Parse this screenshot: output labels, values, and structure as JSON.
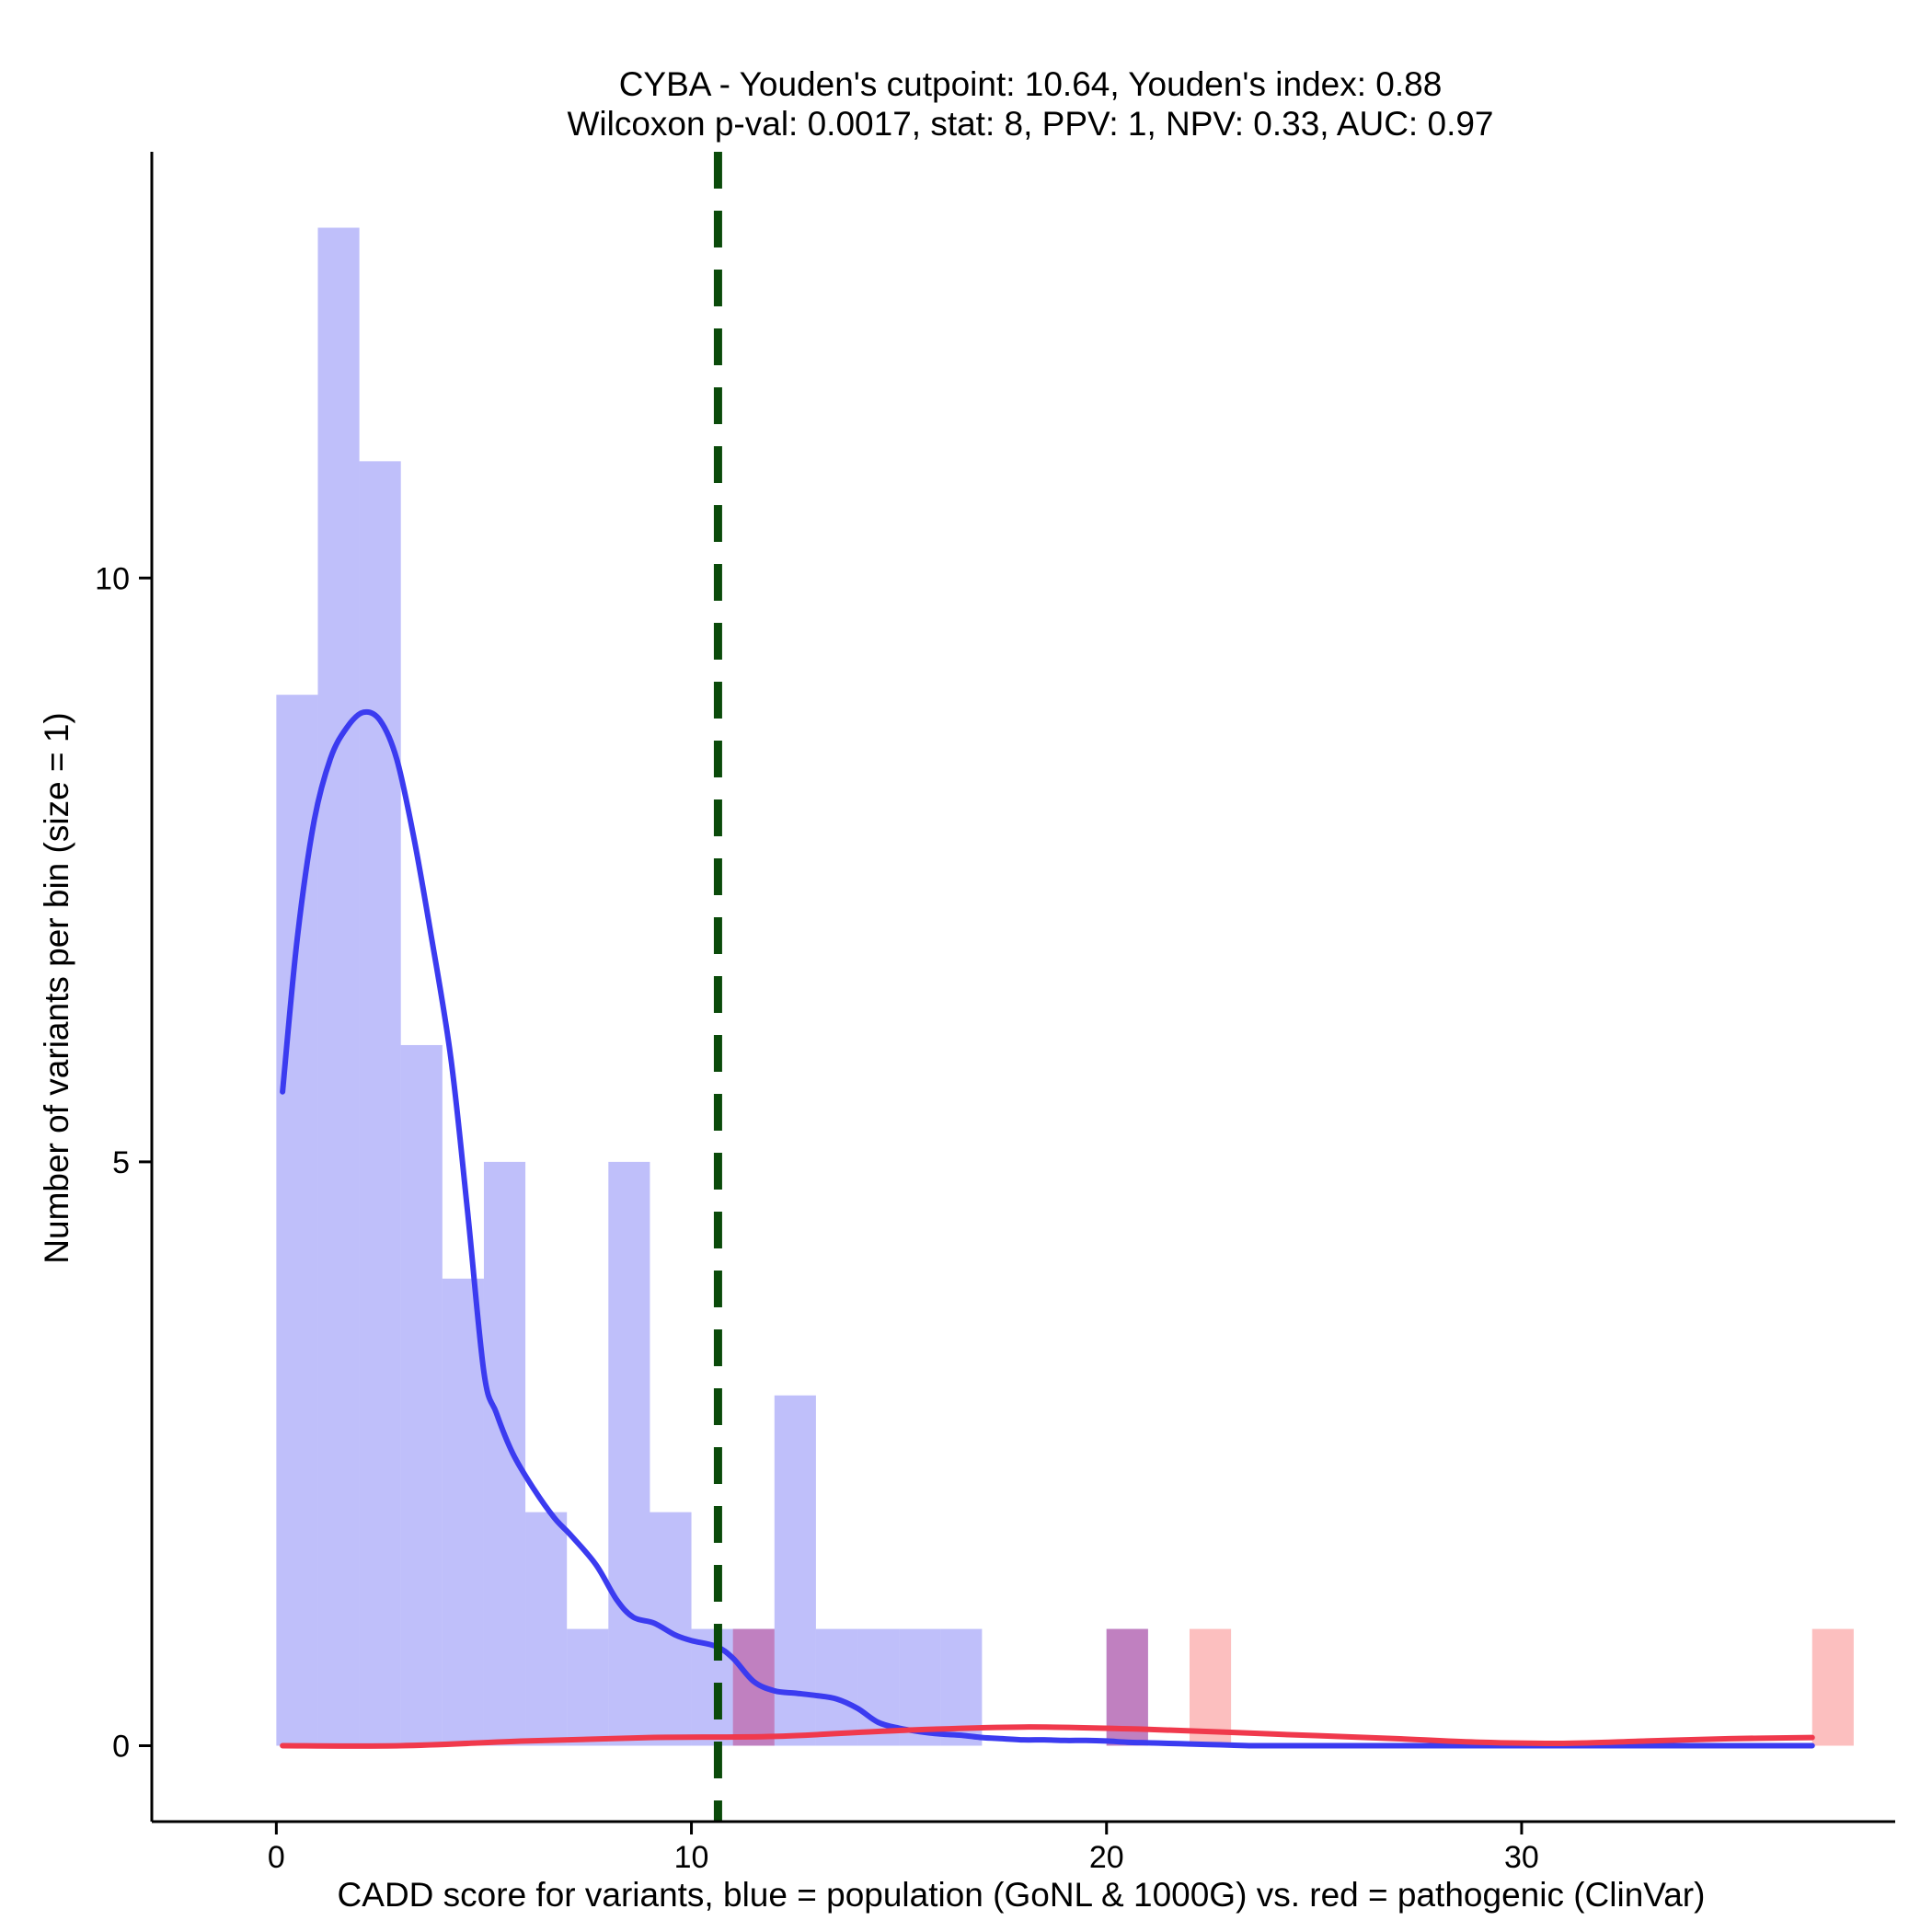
{
  "chart_data": {
    "type": "histogram",
    "title": "CYBA - Youden's cutpoint: 10.64, Youden's index: 0.88",
    "subtitle": "Wilcoxon p-val: 0.0017, stat: 8, PPV: 1, NPV: 0.33, AUC: 0.97",
    "xlabel": "CADD score for variants, blue = population (GoNL & 1000G) vs. red = pathogenic (ClinVar)",
    "ylabel": "Number of variants per bin (size = 1)",
    "xlim": [
      -3,
      39
    ],
    "ylim": [
      -0.65,
      13.65
    ],
    "x_ticks": [
      0,
      10,
      20,
      30
    ],
    "y_ticks": [
      0,
      5,
      10
    ],
    "bin_size": 1,
    "cutpoint": 10.64,
    "series": [
      {
        "name": "population (GoNL & 1000G)",
        "color": "#8080f5",
        "bins": [
          {
            "x0": 0,
            "x1": 1,
            "count": 9
          },
          {
            "x0": 1,
            "x1": 2,
            "count": 13
          },
          {
            "x0": 2,
            "x1": 3,
            "count": 11
          },
          {
            "x0": 3,
            "x1": 4,
            "count": 6
          },
          {
            "x0": 4,
            "x1": 5,
            "count": 4
          },
          {
            "x0": 5,
            "x1": 6,
            "count": 5
          },
          {
            "x0": 6,
            "x1": 7,
            "count": 2
          },
          {
            "x0": 7,
            "x1": 8,
            "count": 1
          },
          {
            "x0": 8,
            "x1": 9,
            "count": 5
          },
          {
            "x0": 9,
            "x1": 10,
            "count": 2
          },
          {
            "x0": 10,
            "x1": 11,
            "count": 1
          },
          {
            "x0": 11,
            "x1": 12,
            "count": 1
          },
          {
            "x0": 12,
            "x1": 13,
            "count": 3
          },
          {
            "x0": 13,
            "x1": 14,
            "count": 1
          },
          {
            "x0": 14,
            "x1": 15,
            "count": 1
          },
          {
            "x0": 15,
            "x1": 16,
            "count": 1
          },
          {
            "x0": 16,
            "x1": 17,
            "count": 1
          },
          {
            "x0": 20,
            "x1": 21,
            "count": 1
          }
        ],
        "density": [
          [
            0.15,
            5.6
          ],
          [
            0.5,
            6.9
          ],
          [
            0.9,
            7.9
          ],
          [
            1.3,
            8.45
          ],
          [
            1.7,
            8.72
          ],
          [
            2.1,
            8.85
          ],
          [
            2.5,
            8.78
          ],
          [
            2.9,
            8.45
          ],
          [
            3.3,
            7.8
          ],
          [
            3.7,
            7.0
          ],
          [
            4.2,
            5.9
          ],
          [
            4.6,
            4.6
          ],
          [
            5.0,
            3.2
          ],
          [
            5.3,
            2.85
          ],
          [
            5.7,
            2.5
          ],
          [
            6.2,
            2.2
          ],
          [
            6.7,
            1.95
          ],
          [
            7.1,
            1.8
          ],
          [
            7.7,
            1.55
          ],
          [
            8.2,
            1.25
          ],
          [
            8.6,
            1.1
          ],
          [
            9.1,
            1.05
          ],
          [
            9.6,
            0.95
          ],
          [
            10.0,
            0.9
          ],
          [
            10.6,
            0.85
          ],
          [
            11.0,
            0.75
          ],
          [
            11.5,
            0.55
          ],
          [
            12.0,
            0.47
          ],
          [
            12.5,
            0.45
          ],
          [
            13.0,
            0.43
          ],
          [
            13.5,
            0.4
          ],
          [
            14.0,
            0.32
          ],
          [
            14.5,
            0.2
          ],
          [
            15.0,
            0.15
          ],
          [
            15.5,
            0.12
          ],
          [
            16.0,
            0.1
          ],
          [
            16.5,
            0.09
          ],
          [
            17.0,
            0.07
          ],
          [
            17.5,
            0.06
          ],
          [
            18.0,
            0.05
          ],
          [
            18.5,
            0.05
          ],
          [
            19.0,
            0.045
          ],
          [
            19.5,
            0.045
          ],
          [
            20.0,
            0.04
          ],
          [
            20.5,
            0.03
          ],
          [
            21.0,
            0.025
          ],
          [
            21.5,
            0.02
          ],
          [
            22.0,
            0.015
          ],
          [
            22.5,
            0.01
          ],
          [
            23.0,
            0.005
          ],
          [
            23.5,
            0.0
          ],
          [
            24.0,
            0.0
          ],
          [
            26.0,
            0.0
          ],
          [
            30.0,
            0.0
          ],
          [
            34.0,
            0.0
          ],
          [
            37.0,
            0.0
          ]
        ]
      },
      {
        "name": "pathogenic (ClinVar)",
        "color": "#fa8080",
        "bins": [
          {
            "x0": 11,
            "x1": 12,
            "count": 1
          },
          {
            "x0": 20,
            "x1": 21,
            "count": 1
          },
          {
            "x0": 22,
            "x1": 23,
            "count": 1
          },
          {
            "x0": 37,
            "x1": 38,
            "count": 1
          }
        ],
        "density": [
          [
            0.15,
            0.0
          ],
          [
            3.0,
            0.0
          ],
          [
            6.0,
            0.04
          ],
          [
            9.0,
            0.07
          ],
          [
            12.0,
            0.08
          ],
          [
            15.0,
            0.13
          ],
          [
            18.0,
            0.16
          ],
          [
            21.0,
            0.14
          ],
          [
            24.0,
            0.1
          ],
          [
            27.0,
            0.06
          ],
          [
            29.0,
            0.03
          ],
          [
            31.0,
            0.02
          ],
          [
            33.0,
            0.04
          ],
          [
            35.0,
            0.06
          ],
          [
            37.0,
            0.07
          ]
        ]
      }
    ],
    "overlap_color": "#c080c0",
    "curve_colors": {
      "population": "#3b3bf0",
      "pathogenic": "#f0394c"
    },
    "cutpoint_color": "#0a4a0a"
  }
}
